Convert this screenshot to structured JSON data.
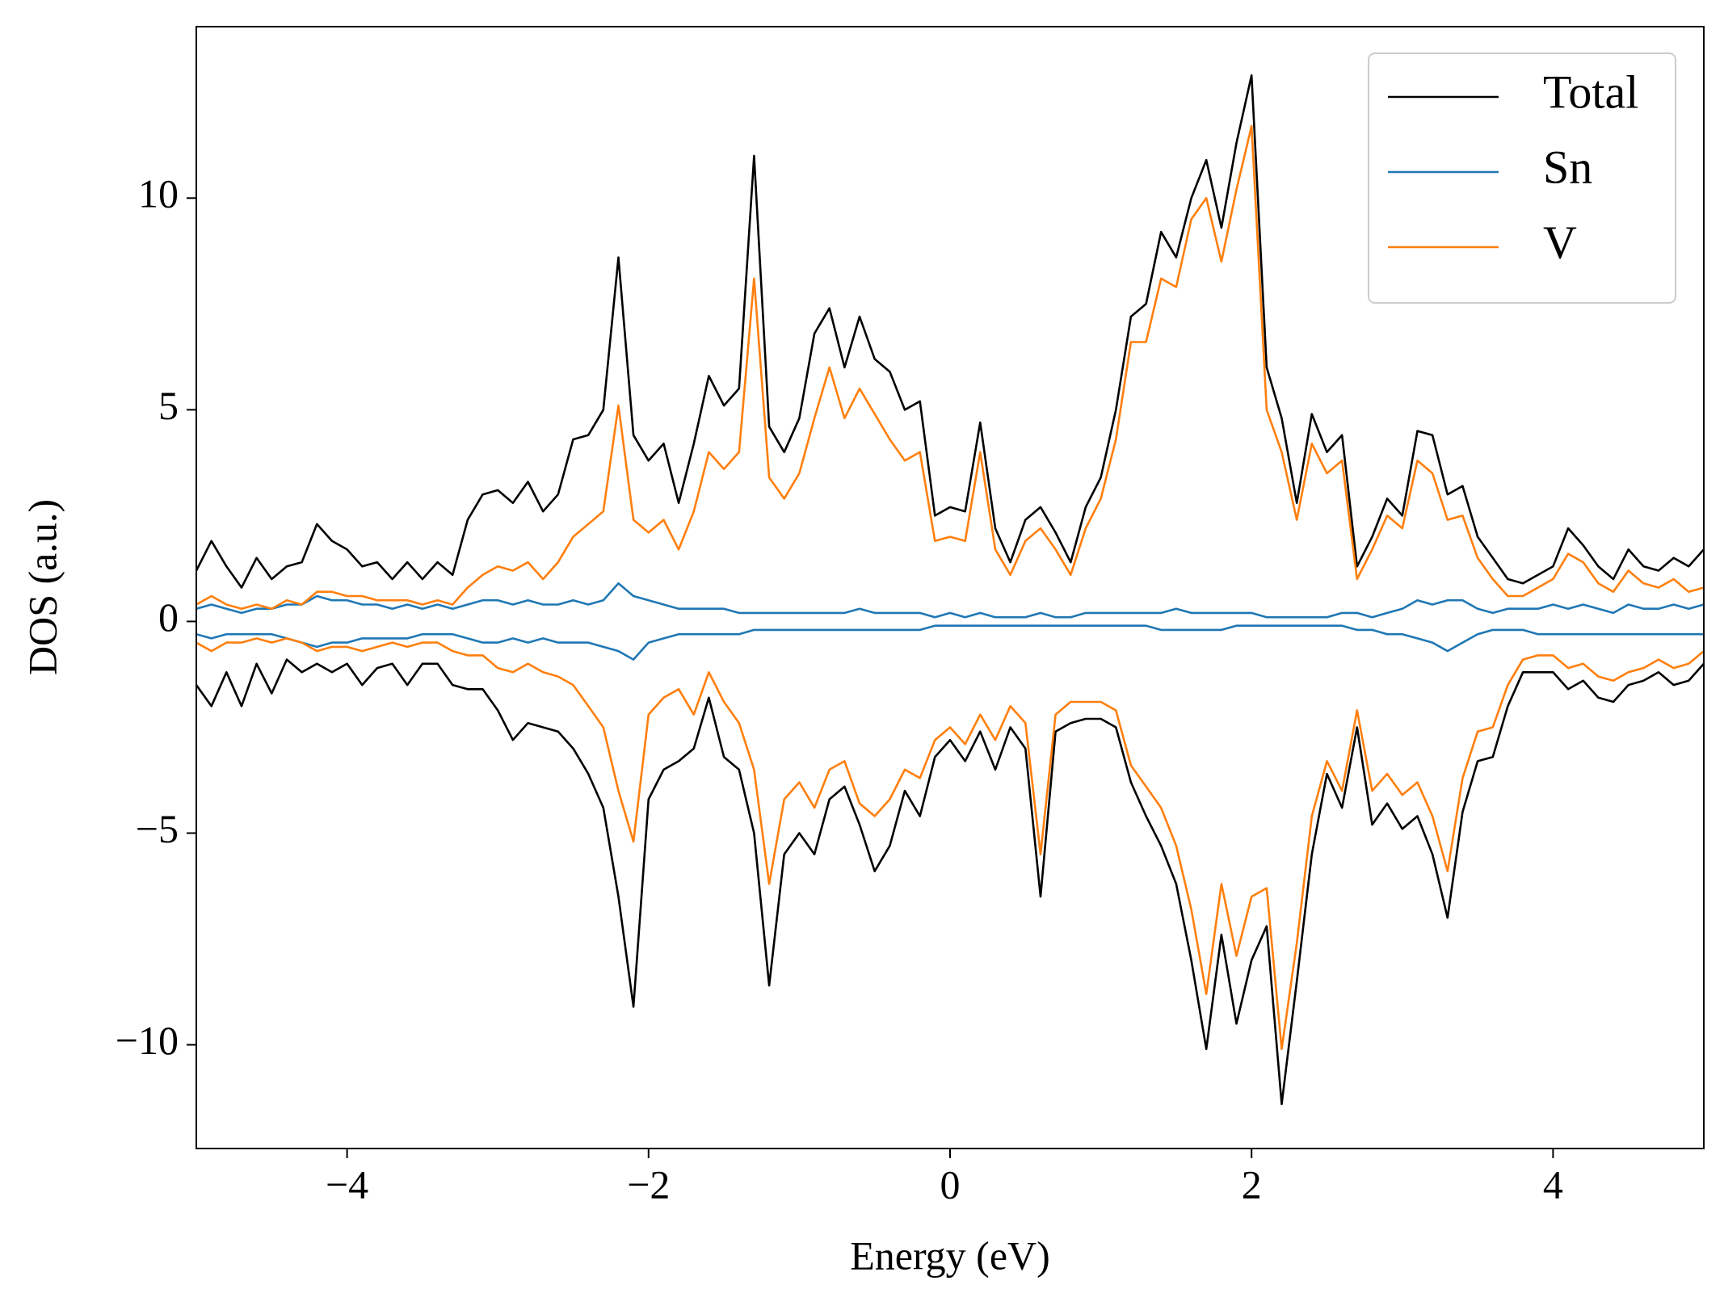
{
  "chart_data": {
    "type": "line",
    "xlabel": "Energy (eV)",
    "ylabel": "DOS (a.u.)",
    "xlim": [
      -5,
      5
    ],
    "ylim": [
      -12.45,
      14.05
    ],
    "xticks": [
      {
        "value": -4,
        "label": "−4"
      },
      {
        "value": -2,
        "label": "−2"
      },
      0,
      2,
      4
    ],
    "yticks": [
      {
        "value": -10,
        "label": "−10"
      },
      {
        "value": -5,
        "label": "−5"
      },
      0,
      5,
      10
    ],
    "legend": "upper right",
    "x": [
      -5.0,
      -4.9,
      -4.8,
      -4.7,
      -4.6,
      -4.5,
      -4.4,
      -4.3,
      -4.2,
      -4.1,
      -4.0,
      -3.9,
      -3.8,
      -3.7,
      -3.6,
      -3.5,
      -3.4,
      -3.3,
      -3.2,
      -3.1,
      -3.0,
      -2.9,
      -2.8,
      -2.7,
      -2.6,
      -2.5,
      -2.4,
      -2.3,
      -2.2,
      -2.1,
      -2.0,
      -1.9,
      -1.8,
      -1.7,
      -1.6,
      -1.5,
      -1.4,
      -1.3,
      -1.2,
      -1.1,
      -1.0,
      -0.9,
      -0.8,
      -0.7,
      -0.6,
      -0.5,
      -0.4,
      -0.3,
      -0.2,
      -0.1,
      0.0,
      0.1,
      0.2,
      0.3,
      0.4,
      0.5,
      0.6,
      0.7,
      0.8,
      0.9,
      1.0,
      1.1,
      1.2,
      1.3,
      1.4,
      1.5,
      1.6,
      1.7,
      1.8,
      1.9,
      2.0,
      2.1,
      2.2,
      2.3,
      2.4,
      2.5,
      2.6,
      2.7,
      2.8,
      2.9,
      3.0,
      3.1,
      3.2,
      3.3,
      3.4,
      3.5,
      3.6,
      3.7,
      3.8,
      3.9,
      4.0,
      4.1,
      4.2,
      4.3,
      4.4,
      4.5,
      4.6,
      4.7,
      4.8,
      4.9,
      5.0
    ],
    "series": [
      {
        "name": "Total",
        "color": "#000000",
        "values": [
          1.2,
          1.9,
          1.3,
          0.8,
          1.5,
          1.0,
          1.3,
          1.4,
          2.3,
          1.9,
          1.7,
          1.3,
          1.4,
          1.0,
          1.4,
          1.0,
          1.4,
          1.1,
          2.4,
          3.0,
          3.1,
          2.8,
          3.3,
          2.6,
          3.0,
          4.3,
          4.4,
          5.0,
          8.6,
          4.4,
          3.8,
          4.2,
          2.8,
          4.2,
          5.8,
          5.1,
          5.5,
          11.0,
          4.6,
          4.0,
          4.8,
          6.8,
          7.4,
          6.0,
          7.2,
          6.2,
          5.9,
          5.0,
          5.2,
          2.5,
          2.7,
          2.6,
          4.7,
          2.2,
          1.4,
          2.4,
          2.7,
          2.1,
          1.4,
          2.7,
          3.4,
          5.0,
          7.2,
          7.5,
          9.2,
          8.6,
          10.0,
          10.9,
          9.3,
          11.3,
          12.9,
          6.0,
          4.8,
          2.8,
          4.9,
          4.0,
          4.4,
          1.3,
          2.0,
          2.9,
          2.5,
          4.5,
          4.4,
          3.0,
          3.2,
          2.0,
          1.5,
          1.0,
          0.9,
          1.1,
          1.3,
          2.2,
          1.8,
          1.3,
          1.0,
          1.7,
          1.3,
          1.2,
          1.5,
          1.3,
          1.7
        ],
        "values_down": [
          -1.5,
          -2.0,
          -1.2,
          -2.0,
          -1.0,
          -1.7,
          -0.9,
          -1.2,
          -1.0,
          -1.2,
          -1.0,
          -1.5,
          -1.1,
          -1.0,
          -1.5,
          -1.0,
          -1.0,
          -1.5,
          -1.6,
          -1.6,
          -2.1,
          -2.8,
          -2.4,
          -2.5,
          -2.6,
          -3.0,
          -3.6,
          -4.4,
          -6.5,
          -9.1,
          -4.2,
          -3.5,
          -3.3,
          -3.0,
          -1.8,
          -3.2,
          -3.5,
          -5.0,
          -8.6,
          -5.5,
          -5.0,
          -5.5,
          -4.2,
          -3.9,
          -4.8,
          -5.9,
          -5.3,
          -4.0,
          -4.6,
          -3.2,
          -2.8,
          -3.3,
          -2.6,
          -3.5,
          -2.5,
          -3.0,
          -6.5,
          -2.6,
          -2.4,
          -2.3,
          -2.3,
          -2.5,
          -3.8,
          -4.6,
          -5.3,
          -6.2,
          -8.0,
          -10.1,
          -7.4,
          -9.5,
          -8.0,
          -7.2,
          -11.4,
          -8.5,
          -5.5,
          -3.6,
          -4.4,
          -2.5,
          -4.8,
          -4.3,
          -4.9,
          -4.6,
          -5.5,
          -7.0,
          -4.5,
          -3.3,
          -3.2,
          -2.0,
          -1.2,
          -1.2,
          -1.2,
          -1.6,
          -1.4,
          -1.8,
          -1.9,
          -1.5,
          -1.4,
          -1.2,
          -1.5,
          -1.4,
          -1.0
        ]
      },
      {
        "name": "Sn",
        "color": "#1f77b4",
        "values": [
          0.3,
          0.4,
          0.3,
          0.2,
          0.3,
          0.3,
          0.4,
          0.4,
          0.6,
          0.5,
          0.5,
          0.4,
          0.4,
          0.3,
          0.4,
          0.3,
          0.4,
          0.3,
          0.4,
          0.5,
          0.5,
          0.4,
          0.5,
          0.4,
          0.4,
          0.5,
          0.4,
          0.5,
          0.9,
          0.6,
          0.5,
          0.4,
          0.3,
          0.3,
          0.3,
          0.3,
          0.2,
          0.2,
          0.2,
          0.2,
          0.2,
          0.2,
          0.2,
          0.2,
          0.3,
          0.2,
          0.2,
          0.2,
          0.2,
          0.1,
          0.2,
          0.1,
          0.2,
          0.1,
          0.1,
          0.1,
          0.2,
          0.1,
          0.1,
          0.2,
          0.2,
          0.2,
          0.2,
          0.2,
          0.2,
          0.3,
          0.2,
          0.2,
          0.2,
          0.2,
          0.2,
          0.1,
          0.1,
          0.1,
          0.1,
          0.1,
          0.2,
          0.2,
          0.1,
          0.2,
          0.3,
          0.5,
          0.4,
          0.5,
          0.5,
          0.3,
          0.2,
          0.3,
          0.3,
          0.3,
          0.4,
          0.3,
          0.4,
          0.3,
          0.2,
          0.4,
          0.3,
          0.3,
          0.4,
          0.3,
          0.4
        ],
        "values_down": [
          -0.3,
          -0.4,
          -0.3,
          -0.3,
          -0.3,
          -0.3,
          -0.4,
          -0.5,
          -0.6,
          -0.5,
          -0.5,
          -0.4,
          -0.4,
          -0.4,
          -0.4,
          -0.3,
          -0.3,
          -0.3,
          -0.4,
          -0.5,
          -0.5,
          -0.4,
          -0.5,
          -0.4,
          -0.5,
          -0.5,
          -0.5,
          -0.6,
          -0.7,
          -0.9,
          -0.5,
          -0.4,
          -0.3,
          -0.3,
          -0.3,
          -0.3,
          -0.3,
          -0.2,
          -0.2,
          -0.2,
          -0.2,
          -0.2,
          -0.2,
          -0.2,
          -0.2,
          -0.2,
          -0.2,
          -0.2,
          -0.2,
          -0.1,
          -0.1,
          -0.1,
          -0.1,
          -0.1,
          -0.1,
          -0.1,
          -0.1,
          -0.1,
          -0.1,
          -0.1,
          -0.1,
          -0.1,
          -0.1,
          -0.1,
          -0.2,
          -0.2,
          -0.2,
          -0.2,
          -0.2,
          -0.1,
          -0.1,
          -0.1,
          -0.1,
          -0.1,
          -0.1,
          -0.1,
          -0.1,
          -0.2,
          -0.2,
          -0.3,
          -0.3,
          -0.4,
          -0.5,
          -0.7,
          -0.5,
          -0.3,
          -0.2,
          -0.2,
          -0.2,
          -0.3,
          -0.3,
          -0.3,
          -0.3,
          -0.3,
          -0.3,
          -0.3,
          -0.3,
          -0.3,
          -0.3,
          -0.3,
          -0.3
        ]
      },
      {
        "name": "V",
        "color": "#ff7f0e",
        "values": [
          0.4,
          0.6,
          0.4,
          0.3,
          0.4,
          0.3,
          0.5,
          0.4,
          0.7,
          0.7,
          0.6,
          0.6,
          0.5,
          0.5,
          0.5,
          0.4,
          0.5,
          0.4,
          0.8,
          1.1,
          1.3,
          1.2,
          1.4,
          1.0,
          1.4,
          2.0,
          2.3,
          2.6,
          5.1,
          2.4,
          2.1,
          2.4,
          1.7,
          2.6,
          4.0,
          3.6,
          4.0,
          8.1,
          3.4,
          2.9,
          3.5,
          4.8,
          6.0,
          4.8,
          5.5,
          4.9,
          4.3,
          3.8,
          4.0,
          1.9,
          2.0,
          1.9,
          4.0,
          1.7,
          1.1,
          1.9,
          2.2,
          1.7,
          1.1,
          2.2,
          2.9,
          4.3,
          6.6,
          6.6,
          8.1,
          7.9,
          9.5,
          10.0,
          8.5,
          10.2,
          11.7,
          5.0,
          4.0,
          2.4,
          4.2,
          3.5,
          3.8,
          1.0,
          1.7,
          2.5,
          2.2,
          3.8,
          3.5,
          2.4,
          2.5,
          1.5,
          1.0,
          0.6,
          0.6,
          0.8,
          1.0,
          1.6,
          1.4,
          0.9,
          0.7,
          1.2,
          0.9,
          0.8,
          1.0,
          0.7,
          0.8
        ],
        "values_down": [
          -0.5,
          -0.7,
          -0.5,
          -0.5,
          -0.4,
          -0.5,
          -0.4,
          -0.5,
          -0.7,
          -0.6,
          -0.6,
          -0.7,
          -0.6,
          -0.5,
          -0.6,
          -0.5,
          -0.5,
          -0.7,
          -0.8,
          -0.8,
          -1.1,
          -1.2,
          -1.0,
          -1.2,
          -1.3,
          -1.5,
          -2.0,
          -2.5,
          -4.0,
          -5.2,
          -2.2,
          -1.8,
          -1.6,
          -2.2,
          -1.2,
          -1.9,
          -2.4,
          -3.5,
          -6.2,
          -4.2,
          -3.8,
          -4.4,
          -3.5,
          -3.3,
          -4.3,
          -4.6,
          -4.2,
          -3.5,
          -3.7,
          -2.8,
          -2.5,
          -2.9,
          -2.2,
          -2.8,
          -2.0,
          -2.4,
          -5.5,
          -2.2,
          -1.9,
          -1.9,
          -1.9,
          -2.1,
          -3.4,
          -3.9,
          -4.4,
          -5.3,
          -6.8,
          -8.8,
          -6.2,
          -7.9,
          -6.5,
          -6.3,
          -10.1,
          -7.6,
          -4.6,
          -3.3,
          -4.0,
          -2.1,
          -4.0,
          -3.6,
          -4.1,
          -3.8,
          -4.6,
          -5.9,
          -3.7,
          -2.6,
          -2.5,
          -1.5,
          -0.9,
          -0.8,
          -0.8,
          -1.1,
          -1.0,
          -1.3,
          -1.4,
          -1.2,
          -1.1,
          -0.9,
          -1.1,
          -1.0,
          -0.7
        ]
      }
    ]
  }
}
